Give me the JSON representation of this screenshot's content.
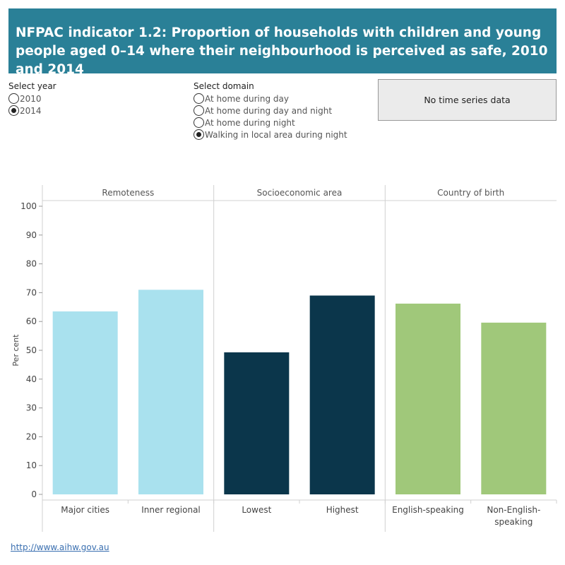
{
  "title": "NFPAC indicator 1.2: Proportion of households with children and young people aged 0–14 where their neighbourhood is perceived as safe, 2010 and 2014",
  "year_filter": {
    "label": "Select year",
    "options": [
      {
        "label": "2010",
        "checked": false
      },
      {
        "label": "2014",
        "checked": true
      }
    ]
  },
  "domain_filter": {
    "label": "Select domain",
    "options": [
      {
        "label": "At home during day",
        "checked": false
      },
      {
        "label": "At home during day and night",
        "checked": false
      },
      {
        "label": "At home during night",
        "checked": false
      },
      {
        "label": "Walking in local area during night",
        "checked": true
      }
    ]
  },
  "no_time_series": "No time series data",
  "footer_link": "http://www.aihw.gov.au",
  "chart_data": {
    "type": "bar",
    "ylabel": "Per cent",
    "ylim": [
      0,
      100
    ],
    "yticks": [
      0,
      10,
      20,
      30,
      40,
      50,
      60,
      70,
      80,
      90,
      100
    ],
    "grid": false,
    "panels": [
      {
        "name": "Remoteness",
        "categories": [
          "Major cities",
          "Inner regional"
        ],
        "values": [
          63.5,
          71
        ],
        "color": "#a9e1ee"
      },
      {
        "name": "Socioeconomic area",
        "categories": [
          "Lowest",
          "Highest"
        ],
        "values": [
          49.3,
          69
        ],
        "color": "#0b364b"
      },
      {
        "name": "Country of birth",
        "categories": [
          "English-speaking",
          "Non-English-speaking"
        ],
        "values": [
          66.2,
          59.6
        ],
        "color": "#a0c87a"
      }
    ]
  }
}
